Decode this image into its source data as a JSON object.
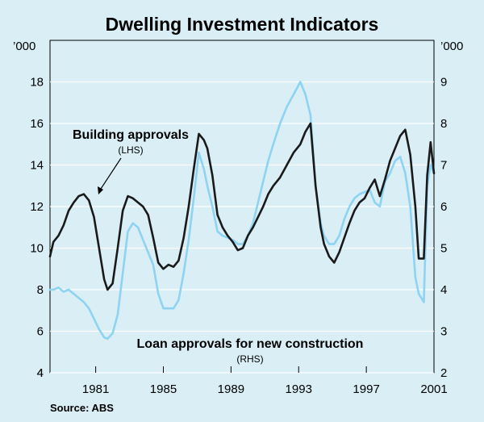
{
  "chart_data": {
    "type": "line",
    "title": "Dwelling Investment Indicators",
    "left_unit": "’000",
    "right_unit": "’000",
    "x_range": [
      1978.8,
      2001.5
    ],
    "y_left_range": [
      4,
      20
    ],
    "y_right_range": [
      2,
      10
    ],
    "y_left_ticks": [
      "4",
      "6",
      "8",
      "10",
      "12",
      "14",
      "16",
      "18"
    ],
    "y_right_ticks": [
      "2",
      "3",
      "4",
      "5",
      "6",
      "7",
      "8",
      "9"
    ],
    "x_ticks": [
      "1981",
      "1985",
      "1989",
      "1993",
      "1997",
      "2001"
    ],
    "gridlines": true,
    "colors": {
      "building": "#1a1a1a",
      "loan": "#8fd3f3",
      "grid": "#ffffff",
      "background": "#d9eef5"
    },
    "annotations": {
      "building_label": "Building approvals",
      "building_sub": "(LHS)",
      "loan_label": "Loan approvals for new construction",
      "loan_sub": "(RHS)"
    },
    "source": "Source: ABS",
    "series": [
      {
        "name": "Building approvals",
        "axis": "left",
        "x": [
          1978.8,
          1979.0,
          1979.3,
          1979.6,
          1979.9,
          1980.2,
          1980.5,
          1980.8,
          1981.1,
          1981.4,
          1981.7,
          1982.0,
          1982.2,
          1982.5,
          1982.8,
          1983.1,
          1983.4,
          1983.7,
          1984.0,
          1984.3,
          1984.6,
          1984.9,
          1985.2,
          1985.5,
          1985.8,
          1986.1,
          1986.4,
          1986.7,
          1987.0,
          1987.3,
          1987.6,
          1987.9,
          1988.1,
          1988.4,
          1988.7,
          1989.0,
          1989.3,
          1989.6,
          1989.9,
          1990.2,
          1990.5,
          1990.8,
          1991.1,
          1991.4,
          1991.7,
          1992.0,
          1992.4,
          1992.8,
          1993.2,
          1993.6,
          1993.9,
          1994.2,
          1994.5,
          1994.8,
          1995.0,
          1995.3,
          1995.6,
          1995.9,
          1996.2,
          1996.5,
          1996.8,
          1997.1,
          1997.4,
          1997.7,
          1998.0,
          1998.3,
          1998.6,
          1998.9,
          1999.2,
          1999.5,
          1999.8,
          2000.1,
          2000.4,
          2000.6,
          2000.9,
          2001.1,
          2001.3,
          2001.5
        ],
        "values": [
          9.6,
          10.3,
          10.6,
          11.1,
          11.8,
          12.2,
          12.5,
          12.6,
          12.3,
          11.5,
          10.0,
          8.5,
          8.0,
          8.3,
          10.0,
          11.8,
          12.5,
          12.4,
          12.2,
          12.0,
          11.6,
          10.5,
          9.3,
          9.0,
          9.2,
          9.1,
          9.4,
          10.5,
          12.0,
          13.8,
          15.5,
          15.2,
          14.8,
          13.5,
          11.6,
          11.0,
          10.6,
          10.3,
          9.9,
          10.0,
          10.6,
          11.0,
          11.5,
          12.0,
          12.6,
          13.0,
          13.4,
          14.0,
          14.6,
          15.0,
          15.6,
          16.0,
          13.0,
          11.0,
          10.2,
          9.6,
          9.3,
          9.8,
          10.5,
          11.2,
          11.8,
          12.2,
          12.4,
          12.9,
          13.3,
          12.5,
          13.3,
          14.2,
          14.8,
          15.4,
          15.7,
          14.5,
          12.0,
          9.5,
          9.5,
          13.5,
          15.1,
          13.6
        ]
      },
      {
        "name": "Loan approvals for new construction",
        "axis": "right",
        "x": [
          1978.8,
          1979.0,
          1979.3,
          1979.6,
          1979.9,
          1980.2,
          1980.5,
          1980.8,
          1981.1,
          1981.4,
          1981.7,
          1982.0,
          1982.2,
          1982.5,
          1982.8,
          1983.1,
          1983.4,
          1983.7,
          1984.0,
          1984.3,
          1984.6,
          1984.9,
          1985.2,
          1985.5,
          1985.8,
          1986.1,
          1986.4,
          1986.7,
          1987.0,
          1987.3,
          1987.6,
          1987.9,
          1988.1,
          1988.4,
          1988.7,
          1989.0,
          1989.3,
          1989.6,
          1989.9,
          1990.2,
          1990.5,
          1990.8,
          1991.1,
          1991.4,
          1991.7,
          1992.0,
          1992.4,
          1992.8,
          1993.2,
          1993.6,
          1993.9,
          1994.2,
          1994.5,
          1994.8,
          1995.0,
          1995.3,
          1995.6,
          1995.9,
          1996.2,
          1996.5,
          1996.8,
          1997.1,
          1997.4,
          1997.7,
          1998.0,
          1998.3,
          1998.6,
          1998.9,
          1999.2,
          1999.5,
          1999.8,
          2000.1,
          2000.4,
          2000.6,
          2000.9,
          2001.1,
          2001.3,
          2001.5
        ],
        "values": [
          4.0,
          4.0,
          4.05,
          3.95,
          4.0,
          3.9,
          3.8,
          3.7,
          3.55,
          3.3,
          3.05,
          2.85,
          2.82,
          2.95,
          3.4,
          4.4,
          5.4,
          5.6,
          5.5,
          5.2,
          4.9,
          4.6,
          3.9,
          3.55,
          3.55,
          3.55,
          3.75,
          4.4,
          5.2,
          6.2,
          7.3,
          6.9,
          6.5,
          6.0,
          5.4,
          5.3,
          5.25,
          5.2,
          5.1,
          5.1,
          5.3,
          5.6,
          6.1,
          6.6,
          7.1,
          7.5,
          8.0,
          8.4,
          8.7,
          9.0,
          8.7,
          8.2,
          6.5,
          5.6,
          5.3,
          5.1,
          5.1,
          5.3,
          5.7,
          6.0,
          6.2,
          6.3,
          6.35,
          6.4,
          6.1,
          6.0,
          6.6,
          6.8,
          7.1,
          7.2,
          6.8,
          6.0,
          4.3,
          3.9,
          3.7,
          6.5,
          7.0,
          6.8
        ]
      }
    ]
  }
}
